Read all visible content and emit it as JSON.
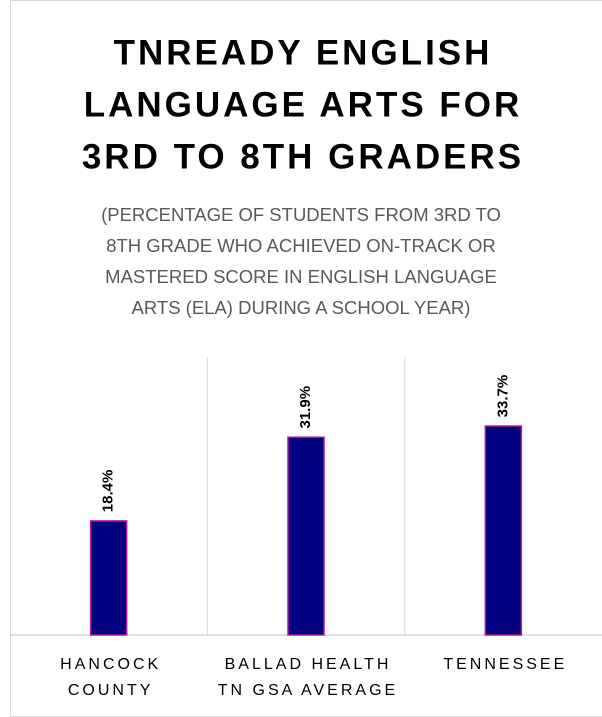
{
  "chart_data": {
    "type": "bar",
    "title": [
      "TNREADY ENGLISH",
      "LANGUAGE ARTS FOR",
      "3RD TO 8TH GRADERS"
    ],
    "subtitle": [
      "(PERCENTAGE OF STUDENTS FROM 3RD TO",
      "8TH GRADE WHO ACHIEVED ON-TRACK OR",
      "MASTERED SCORE IN ENGLISH LANGUAGE",
      "ARTS (ELA) DURING A SCHOOL YEAR)"
    ],
    "categories": [
      [
        "HANCOCK",
        "COUNTY"
      ],
      [
        "BALLAD HEALTH",
        "TN GSA AVERAGE"
      ],
      [
        "TENNESSEE"
      ]
    ],
    "values": [
      18.4,
      31.9,
      33.7
    ],
    "value_labels": [
      "18.4%",
      "31.9%",
      "33.7%"
    ],
    "color": "#000080",
    "edge_color": "#b0179b"
  }
}
